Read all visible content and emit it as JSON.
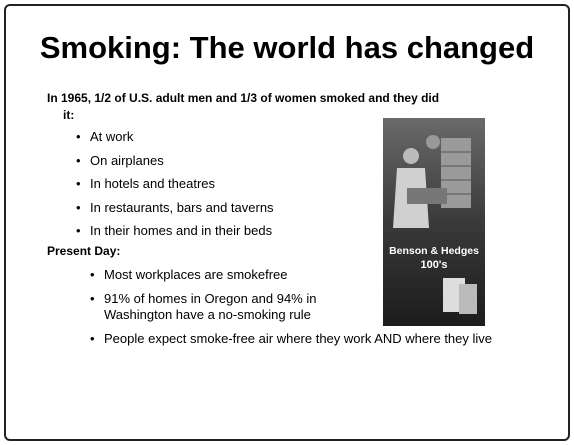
{
  "title": "Smoking:  The world has changed",
  "intro": "In 1965, 1/2 of U.S. adult men and 1/3 of women smoked and they did it:",
  "past_bullets": [
    "At work",
    "On airplanes",
    "In hotels and theatres",
    "In restaurants, bars and taverns",
    "In their homes and in their beds"
  ],
  "present_heading": "Present Day:",
  "present_bullets": [
    "Most workplaces are smokefree",
    "91% of homes in Oregon and 94% in Washington have a no-smoking rule",
    "People expect smoke-free air where they work AND where they live"
  ],
  "image": {
    "brand": "Benson & Hedges",
    "product": "100's"
  }
}
